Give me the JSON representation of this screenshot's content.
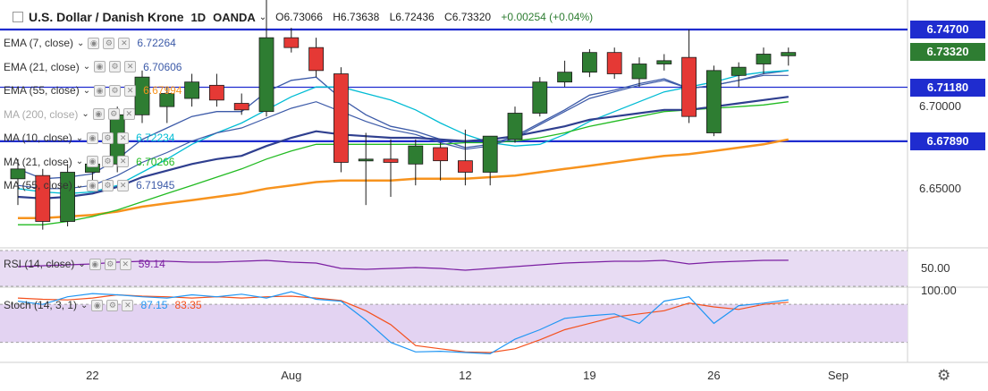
{
  "header": {
    "title": "U.S. Dollar / Danish Krone",
    "timeframe": "1D",
    "source": "OANDA",
    "open": "O6.73066",
    "high": "H6.73638",
    "low": "L6.72436",
    "close": "C6.73320",
    "change": "+0.00254 (+0.04%)"
  },
  "indicators": [
    {
      "label": "EMA (7, close)",
      "value": "6.72264",
      "color": "#3c5aa8"
    },
    {
      "label": "EMA (21, close)",
      "value": "6.70606",
      "color": "#3c5aa8"
    },
    {
      "label": "EMA (55, close)",
      "value": "6.67994",
      "color": "#f7931e"
    },
    {
      "label": "MA (200, close)",
      "value": "",
      "color": "#999999"
    },
    {
      "label": "MA (10, close)",
      "value": "6.72234",
      "color": "#00bcd4"
    },
    {
      "label": "MA (21, close)",
      "value": "6.70266",
      "color": "#22bb22"
    },
    {
      "label": "MA (55, close)",
      "value": "6.71945",
      "color": "#3c5aa8"
    }
  ],
  "rsi": {
    "label": "RSI (14, close)",
    "value": "59.14",
    "color": "#7b1fa2",
    "axis_label": "50.00"
  },
  "stoch": {
    "label": "Stoch (14, 3, 1)",
    "k_value": "87.15",
    "d_value": "83.35",
    "k_color": "#2196f3",
    "d_color": "#f4511e",
    "axis_label": "100.00"
  },
  "price_tags": [
    {
      "label": "6.74700",
      "value": 6.747,
      "bg": "#1f2ccf"
    },
    {
      "label": "6.73320",
      "value": 6.7332,
      "bg": "#2e7d32"
    },
    {
      "label": "6.71180",
      "value": 6.7118,
      "bg": "#1f2ccf"
    },
    {
      "label": "6.67890",
      "value": 6.6789,
      "bg": "#1f2ccf"
    }
  ],
  "price_axis_labels": [
    {
      "label": "6.70000",
      "value": 6.7
    },
    {
      "label": "6.65000",
      "value": 6.65
    }
  ],
  "date_labels": [
    "22",
    "Aug",
    "12",
    "19",
    "26",
    "Sep"
  ],
  "chart_data": {
    "type": "candlestick",
    "title": "U.S. Dollar / Danish Krone",
    "ylim": [
      6.615,
      6.765
    ],
    "horizontal_lines": [
      6.747,
      6.7118,
      6.6789
    ],
    "date_ticks": [
      {
        "label": "22",
        "index": 3
      },
      {
        "label": "Aug",
        "index": 11
      },
      {
        "label": "12",
        "index": 18
      },
      {
        "label": "19",
        "index": 23
      },
      {
        "label": "26",
        "index": 28
      },
      {
        "label": "Sep",
        "index": 33
      }
    ],
    "candles": [
      {
        "o": 6.656,
        "h": 6.668,
        "l": 6.64,
        "c": 6.662
      },
      {
        "o": 6.658,
        "h": 6.662,
        "l": 6.625,
        "c": 6.63
      },
      {
        "o": 6.63,
        "h": 6.665,
        "l": 6.627,
        "c": 6.66
      },
      {
        "o": 6.66,
        "h": 6.668,
        "l": 6.655,
        "c": 6.665
      },
      {
        "o": 6.665,
        "h": 6.7,
        "l": 6.66,
        "c": 6.695
      },
      {
        "o": 6.695,
        "h": 6.722,
        "l": 6.69,
        "c": 6.718
      },
      {
        "o": 6.7,
        "h": 6.712,
        "l": 6.69,
        "c": 6.708
      },
      {
        "o": 6.705,
        "h": 6.72,
        "l": 6.7,
        "c": 6.715
      },
      {
        "o": 6.713,
        "h": 6.72,
        "l": 6.7,
        "c": 6.704
      },
      {
        "o": 6.702,
        "h": 6.708,
        "l": 6.695,
        "c": 6.698
      },
      {
        "o": 6.697,
        "h": 6.77,
        "l": 6.694,
        "c": 6.742
      },
      {
        "o": 6.742,
        "h": 6.748,
        "l": 6.733,
        "c": 6.736
      },
      {
        "o": 6.736,
        "h": 6.742,
        "l": 6.718,
        "c": 6.722
      },
      {
        "o": 6.72,
        "h": 6.724,
        "l": 6.66,
        "c": 6.666
      },
      {
        "o": 6.667,
        "h": 6.684,
        "l": 6.64,
        "c": 6.668
      },
      {
        "o": 6.668,
        "h": 6.68,
        "l": 6.645,
        "c": 6.666
      },
      {
        "o": 6.665,
        "h": 6.68,
        "l": 6.652,
        "c": 6.676
      },
      {
        "o": 6.675,
        "h": 6.678,
        "l": 6.655,
        "c": 6.667
      },
      {
        "o": 6.667,
        "h": 6.686,
        "l": 6.652,
        "c": 6.66
      },
      {
        "o": 6.66,
        "h": 6.682,
        "l": 6.652,
        "c": 6.682
      },
      {
        "o": 6.68,
        "h": 6.7,
        "l": 6.678,
        "c": 6.696
      },
      {
        "o": 6.696,
        "h": 6.718,
        "l": 6.694,
        "c": 6.715
      },
      {
        "o": 6.715,
        "h": 6.728,
        "l": 6.712,
        "c": 6.721
      },
      {
        "o": 6.721,
        "h": 6.735,
        "l": 6.718,
        "c": 6.733
      },
      {
        "o": 6.733,
        "h": 6.736,
        "l": 6.717,
        "c": 6.72
      },
      {
        "o": 6.717,
        "h": 6.73,
        "l": 6.712,
        "c": 6.726
      },
      {
        "o": 6.726,
        "h": 6.732,
        "l": 6.722,
        "c": 6.728
      },
      {
        "o": 6.73,
        "h": 6.747,
        "l": 6.69,
        "c": 6.694
      },
      {
        "o": 6.684,
        "h": 6.725,
        "l": 6.682,
        "c": 6.722
      },
      {
        "o": 6.719,
        "h": 6.727,
        "l": 6.712,
        "c": 6.724
      },
      {
        "o": 6.726,
        "h": 6.736,
        "l": 6.72,
        "c": 6.732
      },
      {
        "o": 6.731,
        "h": 6.736,
        "l": 6.725,
        "c": 6.733
      }
    ],
    "series": [
      {
        "name": "EMA (7, close)",
        "color": "#3c5aa8",
        "values": [
          6.662,
          6.656,
          6.657,
          6.659,
          6.668,
          6.68,
          6.687,
          6.694,
          6.697,
          6.697,
          6.709,
          6.716,
          6.718,
          6.705,
          6.695,
          6.688,
          6.685,
          6.68,
          6.675,
          6.677,
          6.682,
          6.69,
          6.698,
          6.707,
          6.71,
          6.714,
          6.717,
          6.711,
          6.713,
          6.716,
          6.72,
          6.722
        ]
      },
      {
        "name": "EMA (21, close)",
        "color": "#3c5aa8",
        "values": [
          6.645,
          6.644,
          6.645,
          6.647,
          6.651,
          6.657,
          6.661,
          6.665,
          6.668,
          6.67,
          6.676,
          6.681,
          6.685,
          6.683,
          6.682,
          6.681,
          6.681,
          6.68,
          6.679,
          6.68,
          6.682,
          6.685,
          6.688,
          6.692,
          6.694,
          6.696,
          6.698,
          6.698,
          6.7,
          6.702,
          6.704,
          6.706
        ]
      },
      {
        "name": "EMA (55, close)",
        "color": "#f7931e",
        "values": [
          6.632,
          6.632,
          6.633,
          6.634,
          6.636,
          6.639,
          6.641,
          6.643,
          6.645,
          6.647,
          6.65,
          6.652,
          6.654,
          6.655,
          6.655,
          6.655,
          6.656,
          6.656,
          6.656,
          6.657,
          6.658,
          6.66,
          6.662,
          6.664,
          6.666,
          6.668,
          6.67,
          6.671,
          6.673,
          6.675,
          6.677,
          6.68
        ]
      },
      {
        "name": "MA (10, close)",
        "color": "#00bcd4",
        "values": [
          6.65,
          6.648,
          6.647,
          6.648,
          6.652,
          6.66,
          6.668,
          6.677,
          6.684,
          6.69,
          6.698,
          6.706,
          6.712,
          6.712,
          6.708,
          6.704,
          6.698,
          6.69,
          6.683,
          6.678,
          6.676,
          6.677,
          6.683,
          6.691,
          6.697,
          6.703,
          6.709,
          6.712,
          6.715,
          6.719,
          6.721,
          6.722
        ]
      },
      {
        "name": "MA (21, close)",
        "color": "#22bb22",
        "values": [
          6.628,
          6.628,
          6.63,
          6.633,
          6.637,
          6.642,
          6.647,
          6.652,
          6.657,
          6.662,
          6.668,
          6.673,
          6.677,
          6.677,
          6.677,
          6.677,
          6.677,
          6.677,
          6.678,
          6.678,
          6.679,
          6.681,
          6.684,
          6.688,
          6.691,
          6.694,
          6.697,
          6.698,
          6.699,
          6.7,
          6.701,
          6.703
        ]
      },
      {
        "name": "MA (55, close)",
        "color": "#3c5aa8",
        "values": [
          6.652,
          6.65,
          6.65,
          6.652,
          6.658,
          6.666,
          6.672,
          6.679,
          6.684,
          6.687,
          6.693,
          6.699,
          6.703,
          6.697,
          6.691,
          6.686,
          6.683,
          6.678,
          6.674,
          6.676,
          6.681,
          6.689,
          6.697,
          6.705,
          6.709,
          6.713,
          6.716,
          6.711,
          6.713,
          6.716,
          6.719,
          6.719
        ]
      }
    ],
    "rsi": {
      "ylim": [
        30,
        70
      ],
      "values": [
        52,
        53,
        54,
        55,
        57,
        58,
        58,
        57,
        57,
        58,
        59,
        57,
        56,
        50,
        49,
        50,
        51,
        50,
        48,
        50,
        52,
        54,
        56,
        57,
        58,
        58,
        59,
        55,
        57,
        58,
        59,
        59.14
      ]
    },
    "stoch": {
      "ylim": [
        0,
        100
      ],
      "k": [
        85,
        80,
        92,
        97,
        95,
        92,
        90,
        95,
        92,
        96,
        90,
        100,
        88,
        85,
        55,
        20,
        5,
        6,
        4,
        2,
        25,
        40,
        58,
        62,
        65,
        50,
        85,
        92,
        50,
        78,
        82,
        87.15
      ],
      "d": [
        90,
        88,
        87,
        90,
        95,
        93,
        92,
        90,
        92,
        90,
        92,
        93,
        90,
        86,
        70,
        48,
        15,
        10,
        5,
        4,
        10,
        24,
        40,
        50,
        60,
        65,
        70,
        82,
        76,
        72,
        80,
        83.35
      ]
    }
  }
}
